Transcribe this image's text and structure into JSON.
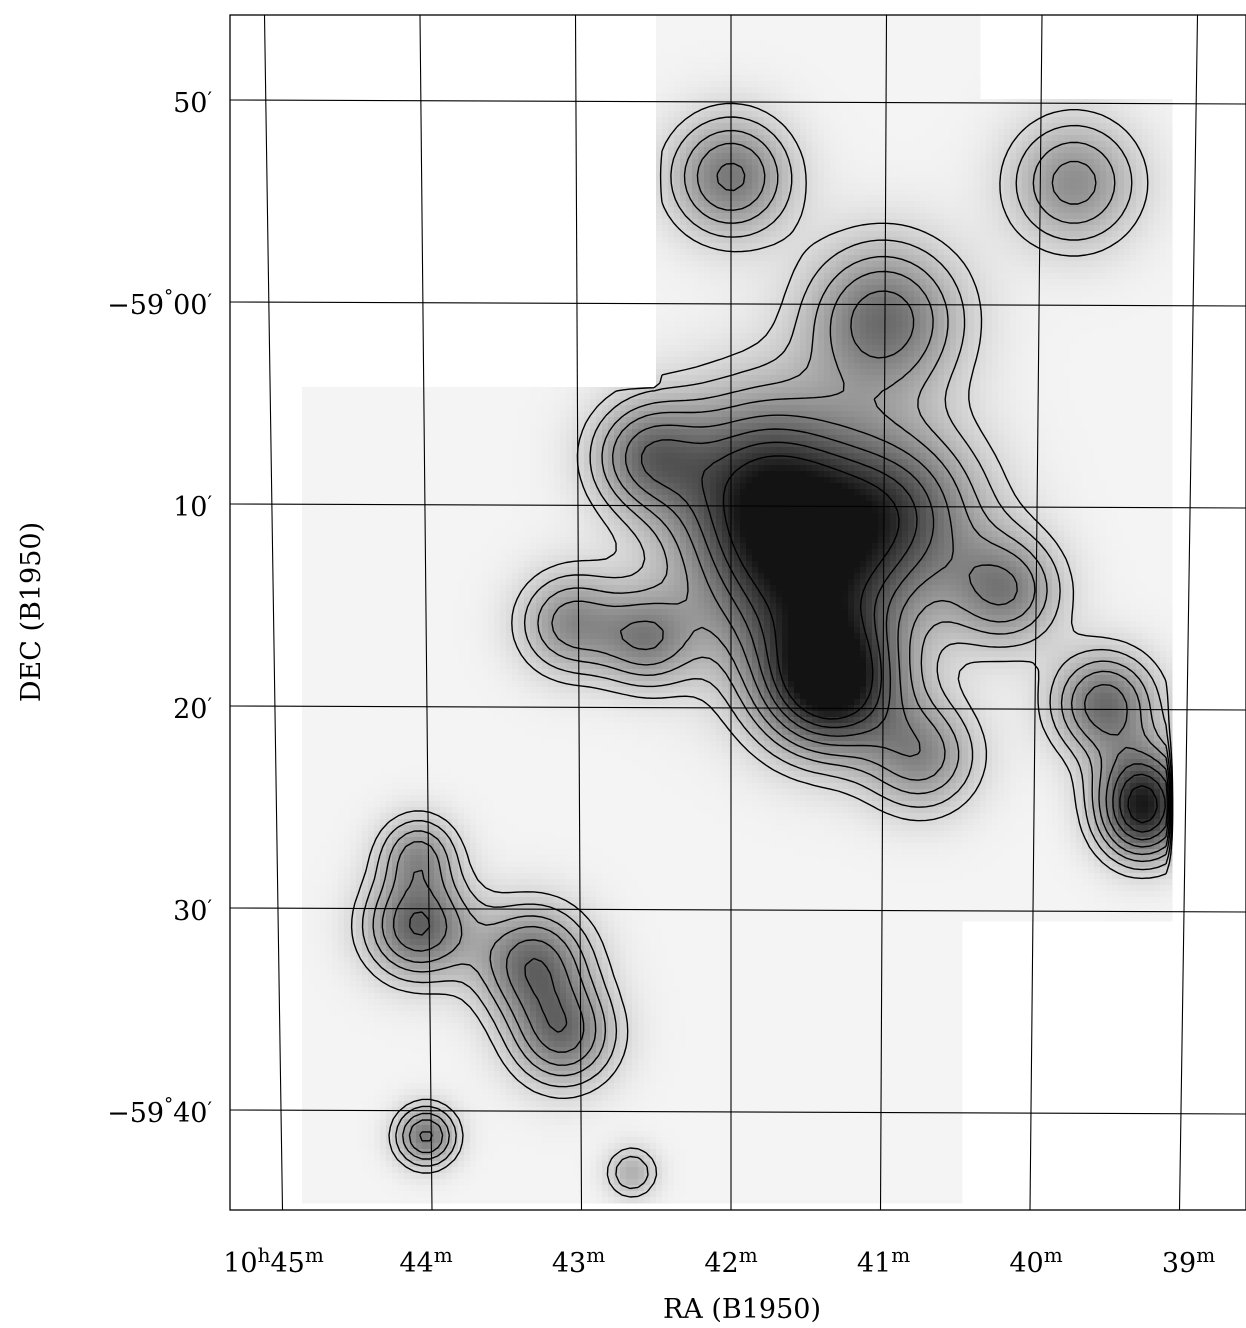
{
  "chart_data": {
    "type": "heatmap",
    "title": "",
    "xlabel": "RA (B1950)",
    "ylabel": "DEC (B1950)",
    "colormap": "grayscale",
    "colors": {
      "frame": "#000000",
      "background": "#ffffff",
      "map_low": "#f4f4f4",
      "map_high": "#111111"
    },
    "grid": true,
    "x_ticks": [
      {
        "ra_min": 45,
        "label_main": "10",
        "sup1": "h",
        "mid": "45",
        "sup2": "m"
      },
      {
        "ra_min": 44,
        "label_main": "",
        "sup1": "",
        "mid": "44",
        "sup2": "m"
      },
      {
        "ra_min": 43,
        "label_main": "",
        "sup1": "",
        "mid": "43",
        "sup2": "m"
      },
      {
        "ra_min": 42,
        "label_main": "",
        "sup1": "",
        "mid": "42",
        "sup2": "m"
      },
      {
        "ra_min": 41,
        "label_main": "",
        "sup1": "",
        "mid": "41",
        "sup2": "m"
      },
      {
        "ra_min": 40,
        "label_main": "",
        "sup1": "",
        "mid": "40",
        "sup2": "m"
      },
      {
        "ra_min": 39,
        "label_main": "",
        "sup1": "",
        "mid": "39",
        "sup2": "m"
      }
    ],
    "y_ticks": [
      {
        "dec_arcmin_offset": -10,
        "text": "50",
        "deg": "",
        "prime": "′"
      },
      {
        "dec_arcmin_offset": 0,
        "text": "−59",
        "deg": "°",
        "sub": "00",
        "prime": "′"
      },
      {
        "dec_arcmin_offset": 10,
        "text": "10",
        "deg": "",
        "prime": "′"
      },
      {
        "dec_arcmin_offset": 20,
        "text": "20",
        "deg": "",
        "prime": "′"
      },
      {
        "dec_arcmin_offset": 30,
        "text": "30",
        "deg": "",
        "prime": "′"
      },
      {
        "dec_arcmin_offset": 40,
        "text": "−59",
        "deg": "°",
        "sub": "40",
        "prime": "′"
      }
    ],
    "clumps": [
      {
        "name": "main-peak",
        "ra_min": 41.35,
        "dec_off": 18.8,
        "peak": 1.0,
        "sigma": 1.6
      },
      {
        "name": "ridge-north",
        "ra_min": 41.55,
        "dec_off": 13.5,
        "peak": 0.75,
        "sigma": 2.4
      },
      {
        "name": "ridge-west",
        "ra_min": 41.8,
        "dec_off": 8.8,
        "peak": 0.72,
        "sigma": 2.2
      },
      {
        "name": "clump-41-10",
        "ra_min": 40.9,
        "dec_off": 10.2,
        "peak": 0.6,
        "sigma": 2.0
      },
      {
        "name": "clump-41-59",
        "ra_min": 41.0,
        "dec_off": 0.8,
        "peak": 0.6,
        "sigma": 1.8
      },
      {
        "name": "clump-42-53",
        "ra_min": 42.0,
        "dec_off": -6.3,
        "peak": 0.55,
        "sigma": 1.4
      },
      {
        "name": "clump-40-54",
        "ra_min": 39.75,
        "dec_off": -6.0,
        "peak": 0.45,
        "sigma": 1.5
      },
      {
        "name": "clump-42-08",
        "ra_min": 42.55,
        "dec_off": 7.5,
        "peak": 0.5,
        "sigma": 1.3
      },
      {
        "name": "clump-43-16",
        "ra_min": 43.05,
        "dec_off": 15.8,
        "peak": 0.45,
        "sigma": 1.2
      },
      {
        "name": "clump-42-17",
        "ra_min": 42.55,
        "dec_off": 16.6,
        "peak": 0.45,
        "sigma": 1.1
      },
      {
        "name": "clump-40-14",
        "ra_min": 40.2,
        "dec_off": 14.2,
        "peak": 0.5,
        "sigma": 1.3
      },
      {
        "name": "clump-40-22",
        "ra_min": 40.75,
        "dec_off": 22.4,
        "peak": 0.45,
        "sigma": 1.3
      },
      {
        "name": "clump-39-20",
        "ra_min": 39.55,
        "dec_off": 19.8,
        "peak": 0.6,
        "sigma": 1.2
      },
      {
        "name": "clump-39-24",
        "ra_min": 39.3,
        "dec_off": 24.0,
        "peak": 0.65,
        "sigma": 1.1
      },
      {
        "name": "clump-39-26",
        "ra_min": 39.3,
        "dec_off": 25.8,
        "peak": 0.5,
        "sigma": 1.0
      },
      {
        "name": "clump-44-31",
        "ra_min": 44.05,
        "dec_off": 30.8,
        "peak": 0.65,
        "sigma": 1.2
      },
      {
        "name": "clump-44-27",
        "ra_min": 44.05,
        "dec_off": 27.2,
        "peak": 0.4,
        "sigma": 0.9
      },
      {
        "name": "clump-43-33",
        "ra_min": 43.3,
        "dec_off": 32.6,
        "peak": 0.6,
        "sigma": 1.3
      },
      {
        "name": "clump-43-36",
        "ra_min": 43.1,
        "dec_off": 36.2,
        "peak": 0.55,
        "sigma": 1.2
      },
      {
        "name": "clump-44-41",
        "ra_min": 44.0,
        "dec_off": 41.2,
        "peak": 0.55,
        "sigma": 0.7
      },
      {
        "name": "clump-42-43",
        "ra_min": 42.65,
        "dec_off": 43.0,
        "peak": 0.3,
        "sigma": 0.6
      }
    ],
    "coverage": [
      {
        "ra_from": 42.5,
        "ra_to": 40.35,
        "dec_from": -14.5,
        "dec_to": 4.0
      },
      {
        "ra_from": 40.35,
        "ra_to": 39.1,
        "dec_from": -10.0,
        "dec_to": 30.5
      },
      {
        "ra_from": 44.8,
        "ra_to": 40.5,
        "dec_from": 4.0,
        "dec_to": 44.5
      },
      {
        "ra_from": 42.5,
        "ra_to": 40.35,
        "dec_from": 4.0,
        "dec_to": 30.5
      }
    ]
  }
}
